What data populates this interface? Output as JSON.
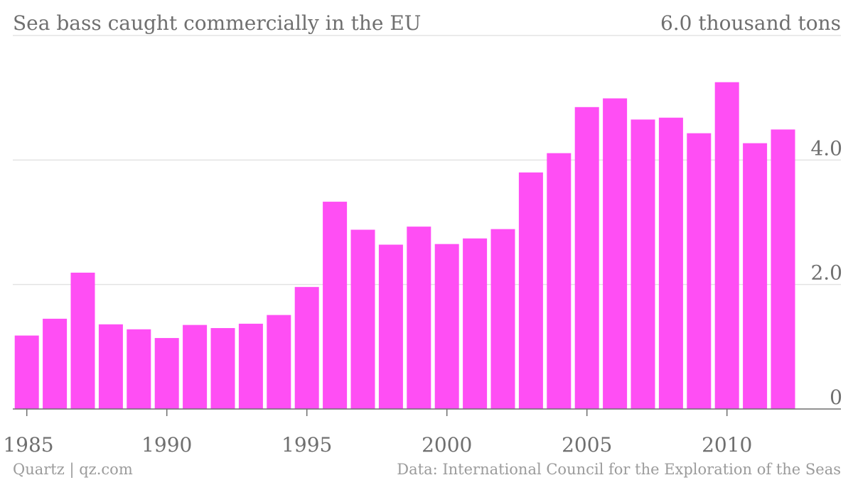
{
  "header": {
    "title": "Sea bass caught commercially in the EU",
    "unit_label": "6.0 thousand tons"
  },
  "footer": {
    "source_left": "Quartz | qz.com",
    "source_right": "Data: International Council for the Exploration of the Seas"
  },
  "colors": {
    "bar": "#ff4ef4",
    "grid": "#e3e3e3",
    "text": "#6f6f6f",
    "footer": "#9b9b9b"
  },
  "chart_data": {
    "type": "bar",
    "title": "Sea bass caught commercially in the EU",
    "xlabel": "",
    "ylabel": "",
    "ylim": [
      0,
      6.0
    ],
    "grid": true,
    "y_axis_side": "right",
    "y_ticks": [
      {
        "value": 0,
        "label": "0"
      },
      {
        "value": 2.0,
        "label": "2.0"
      },
      {
        "value": 4.0,
        "label": "4.0"
      }
    ],
    "x_ticks": [
      {
        "value": 1985,
        "label": "1985"
      },
      {
        "value": 1990,
        "label": "1990"
      },
      {
        "value": 1995,
        "label": "1995"
      },
      {
        "value": 2000,
        "label": "2000"
      },
      {
        "value": 2005,
        "label": "2005"
      },
      {
        "value": 2010,
        "label": "2010"
      }
    ],
    "categories": [
      1985,
      1986,
      1987,
      1988,
      1989,
      1990,
      1991,
      1992,
      1993,
      1994,
      1995,
      1996,
      1997,
      1998,
      1999,
      2000,
      2001,
      2002,
      2003,
      2004,
      2005,
      2006,
      2007,
      2008,
      2009,
      2010,
      2011,
      2012
    ],
    "values": [
      1.18,
      1.45,
      2.19,
      1.36,
      1.28,
      1.14,
      1.35,
      1.3,
      1.37,
      1.51,
      1.96,
      3.33,
      2.88,
      2.64,
      2.93,
      2.65,
      2.74,
      2.89,
      3.8,
      4.11,
      4.85,
      4.99,
      4.65,
      4.68,
      4.43,
      5.25,
      4.27,
      4.49
    ]
  }
}
